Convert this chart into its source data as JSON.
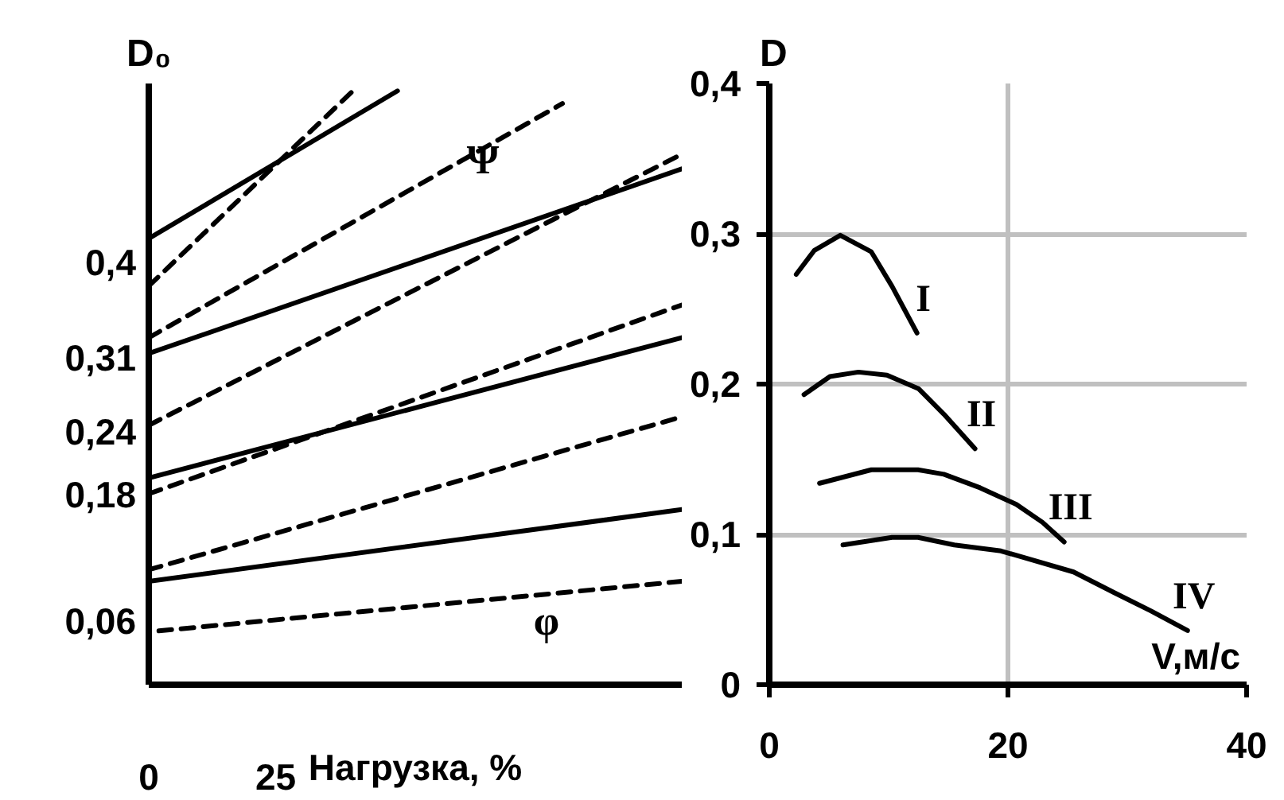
{
  "chart_data": [
    {
      "type": "line",
      "ylabel": "D₀",
      "xlabel": "Нагрузка, %",
      "xlim": [
        0,
        105
      ],
      "ylim": [
        0,
        0.57
      ],
      "xticks": [
        0,
        25
      ],
      "yticks": [
        {
          "value": 0.06,
          "label": "0,06"
        },
        {
          "value": 0.18,
          "label": "0,18"
        },
        {
          "value": 0.24,
          "label": "0,24"
        },
        {
          "value": 0.31,
          "label": "0,31"
        },
        {
          "value": 0.4,
          "label": "0,4"
        }
      ],
      "grid": false,
      "marker": "none",
      "series": [
        {
          "color": "#000000",
          "line_style": "solid",
          "x": [
            0,
            49
          ],
          "values": [
            0.423,
            0.563
          ]
        },
        {
          "color": "#000000",
          "line_style": "dashed",
          "x": [
            0,
            40
          ],
          "values": [
            0.378,
            0.562
          ]
        },
        {
          "color": "#000000",
          "line_style": "dashed",
          "x": [
            0,
            81.5
          ],
          "values": [
            0.329,
            0.551
          ]
        },
        {
          "color": "#000000",
          "line_style": "solid",
          "x": [
            0,
            105
          ],
          "values": [
            0.314,
            0.489
          ]
        },
        {
          "color": "#000000",
          "line_style": "dashed",
          "x": [
            0,
            105
          ],
          "values": [
            0.246,
            0.503
          ]
        },
        {
          "color": "#000000",
          "line_style": "dashed",
          "x": [
            0,
            105
          ],
          "values": [
            0.181,
            0.36
          ]
        },
        {
          "color": "#000000",
          "line_style": "solid",
          "x": [
            0,
            105
          ],
          "values": [
            0.196,
            0.329
          ]
        },
        {
          "color": "#000000",
          "line_style": "dashed",
          "x": [
            0,
            105
          ],
          "values": [
            0.109,
            0.254
          ]
        },
        {
          "color": "#000000",
          "line_style": "solid",
          "x": [
            0,
            105
          ],
          "values": [
            0.098,
            0.166
          ]
        },
        {
          "color": "#000000",
          "line_style": "dashed",
          "x": [
            2,
            105
          ],
          "values": [
            0.051,
            0.098
          ]
        }
      ],
      "annotations": [
        "Ψ",
        "φ"
      ]
    },
    {
      "type": "line",
      "ylabel": "D",
      "xlabel": "V,м/с",
      "xlim": [
        0,
        40
      ],
      "ylim": [
        0,
        0.4
      ],
      "xticks": [
        0,
        20,
        40
      ],
      "yticks": [
        0,
        {
          "value": 0.1,
          "label": "0,1"
        },
        {
          "value": 0.2,
          "label": "0,2"
        },
        {
          "value": 0.3,
          "label": "0,3"
        },
        {
          "value": 0.4,
          "label": "0,4"
        }
      ],
      "grid": true,
      "marker": "none",
      "line_style": "solid",
      "series": [
        {
          "name": "I",
          "color": "#000000",
          "x": [
            2.26,
            3.78,
            5.95,
            8.55,
            10.29,
            12.38
          ],
          "values": [
            0.273,
            0.289,
            0.299,
            0.288,
            0.265,
            0.234
          ]
        },
        {
          "name": "II",
          "color": "#000000",
          "x": [
            2.91,
            5.08,
            7.47,
            9.86,
            12.5,
            14.63,
            17.24
          ],
          "values": [
            0.193,
            0.205,
            0.208,
            0.206,
            0.197,
            0.18,
            0.157
          ]
        },
        {
          "name": "III",
          "color": "#000000",
          "x": [
            4.21,
            8.55,
            12.46,
            14.63,
            17.67,
            20.7,
            22.9,
            24.71
          ],
          "values": [
            0.134,
            0.143,
            0.143,
            0.14,
            0.131,
            0.12,
            0.108,
            0.095
          ]
        },
        {
          "name": "IV",
          "color": "#000000",
          "x": [
            6.17,
            10.29,
            12.46,
            15.5,
            19.41,
            25.5,
            28.97,
            32.0,
            35.05
          ],
          "values": [
            0.093,
            0.098,
            0.098,
            0.093,
            0.089,
            0.075,
            0.061,
            0.049,
            0.036
          ]
        }
      ]
    }
  ]
}
